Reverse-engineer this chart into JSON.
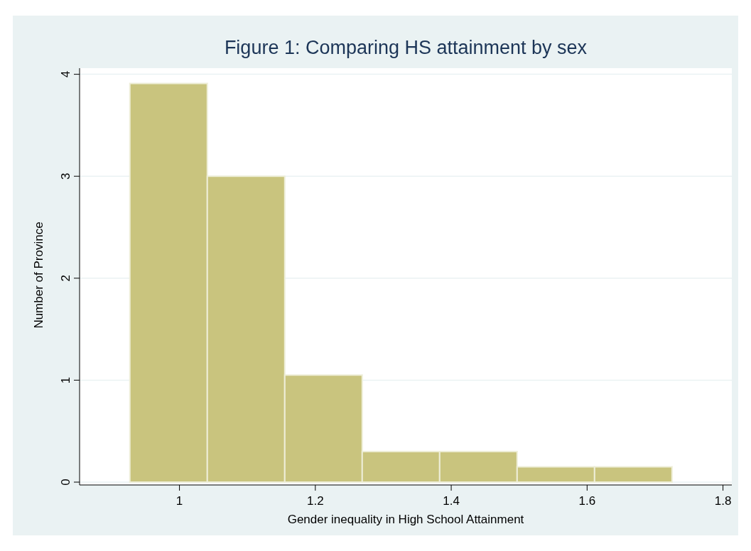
{
  "chart_data": {
    "type": "histogram",
    "title": "Figure 1: Comparing HS attainment by sex",
    "xlabel": "Gender inequality in High School Attainment",
    "ylabel": "Number of Province",
    "bins": [
      0.927,
      1.041,
      1.155,
      1.269,
      1.383,
      1.497,
      1.611,
      1.725
    ],
    "values": [
      3.91,
      3.0,
      1.05,
      0.3,
      0.3,
      0.15,
      0.15
    ],
    "color": "#c9c47e",
    "xlim": [
      0.853,
      1.813
    ],
    "xticks": [
      1,
      1.2,
      1.4,
      1.6,
      1.8
    ],
    "ylim": [
      0,
      4.06
    ],
    "yticks": [
      0,
      1,
      2,
      3,
      4
    ],
    "grid": "y"
  }
}
